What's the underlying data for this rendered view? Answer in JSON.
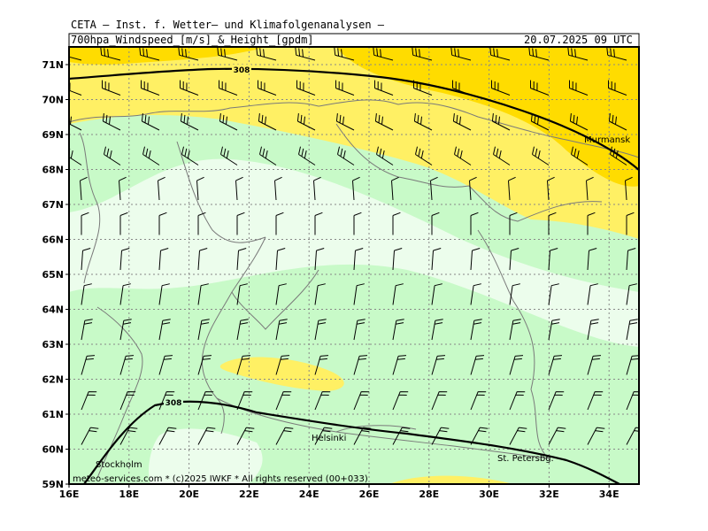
{
  "header": {
    "institute": "CETA — Inst. f. Wetter— und Klimafolgenanalysen —",
    "product": "700hpa_Windspeed_[m/s]_&_Height_[gpdm]",
    "valid_time": "20.07.2025 09 UTC"
  },
  "axes": {
    "lat_labels": [
      "59N",
      "60N",
      "61N",
      "62N",
      "63N",
      "64N",
      "65N",
      "66N",
      "67N",
      "68N",
      "69N",
      "70N",
      "71N"
    ],
    "lon_labels": [
      "16E",
      "18E",
      "20E",
      "22E",
      "24E",
      "26E",
      "28E",
      "30E",
      "32E",
      "34E"
    ]
  },
  "cities": [
    "Murmansk",
    "Helsinki",
    "Stockholm",
    "St. Petersbg."
  ],
  "contour_labels": [
    "308",
    "308"
  ],
  "footer": {
    "credit": "meteo-services.com * (c)2025 IWKF * All rights reserved (00+033)"
  },
  "colors": {
    "very_light_green": "#ecfdec",
    "light_green": "#c8fac8",
    "light_yellow": "#fff064",
    "yellow": "#ffdc00",
    "grid": "#888888",
    "coast": "#777777"
  }
}
